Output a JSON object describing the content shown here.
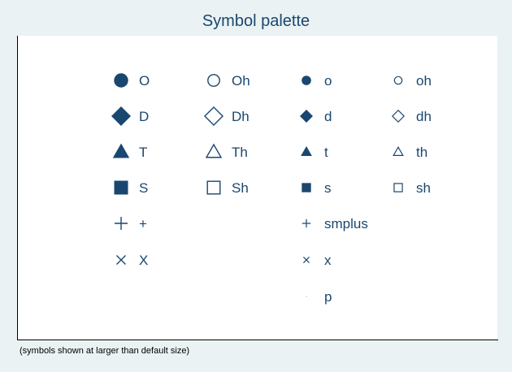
{
  "chart_data": {
    "type": "table",
    "title": "Symbol palette",
    "note": "(symbols shown at larger than default size)",
    "colors": {
      "marker": "#1a476f",
      "text": "#1a476f",
      "background": "#eaf2f3",
      "plot": "#ffffff"
    },
    "symbols": [
      {
        "code": "O",
        "shape": "circle",
        "filled": true,
        "size": "large",
        "col": 0,
        "row": 0
      },
      {
        "code": "Oh",
        "shape": "circle",
        "filled": false,
        "size": "large",
        "col": 1,
        "row": 0
      },
      {
        "code": "o",
        "shape": "circle",
        "filled": true,
        "size": "small",
        "col": 2,
        "row": 0
      },
      {
        "code": "oh",
        "shape": "circle",
        "filled": false,
        "size": "small",
        "col": 3,
        "row": 0
      },
      {
        "code": "D",
        "shape": "diamond",
        "filled": true,
        "size": "large",
        "col": 0,
        "row": 1
      },
      {
        "code": "Dh",
        "shape": "diamond",
        "filled": false,
        "size": "large",
        "col": 1,
        "row": 1
      },
      {
        "code": "d",
        "shape": "diamond",
        "filled": true,
        "size": "small",
        "col": 2,
        "row": 1
      },
      {
        "code": "dh",
        "shape": "diamond",
        "filled": false,
        "size": "small",
        "col": 3,
        "row": 1
      },
      {
        "code": "T",
        "shape": "triangle",
        "filled": true,
        "size": "large",
        "col": 0,
        "row": 2
      },
      {
        "code": "Th",
        "shape": "triangle",
        "filled": false,
        "size": "large",
        "col": 1,
        "row": 2
      },
      {
        "code": "t",
        "shape": "triangle",
        "filled": true,
        "size": "small",
        "col": 2,
        "row": 2
      },
      {
        "code": "th",
        "shape": "triangle",
        "filled": false,
        "size": "small",
        "col": 3,
        "row": 2
      },
      {
        "code": "S",
        "shape": "square",
        "filled": true,
        "size": "large",
        "col": 0,
        "row": 3
      },
      {
        "code": "Sh",
        "shape": "square",
        "filled": false,
        "size": "large",
        "col": 1,
        "row": 3
      },
      {
        "code": "s",
        "shape": "square",
        "filled": true,
        "size": "small",
        "col": 2,
        "row": 3
      },
      {
        "code": "sh",
        "shape": "square",
        "filled": false,
        "size": "small",
        "col": 3,
        "row": 3
      },
      {
        "code": "+",
        "shape": "plus",
        "filled": false,
        "size": "large",
        "col": 0,
        "row": 4
      },
      {
        "code": "smplus",
        "shape": "plus",
        "filled": false,
        "size": "small",
        "col": 2,
        "row": 4
      },
      {
        "code": "X",
        "shape": "x",
        "filled": false,
        "size": "large",
        "col": 0,
        "row": 5
      },
      {
        "code": "x",
        "shape": "x",
        "filled": false,
        "size": "small",
        "col": 2,
        "row": 5
      },
      {
        "code": "p",
        "shape": "point",
        "filled": true,
        "size": "tiny",
        "col": 2,
        "row": 6
      }
    ]
  }
}
